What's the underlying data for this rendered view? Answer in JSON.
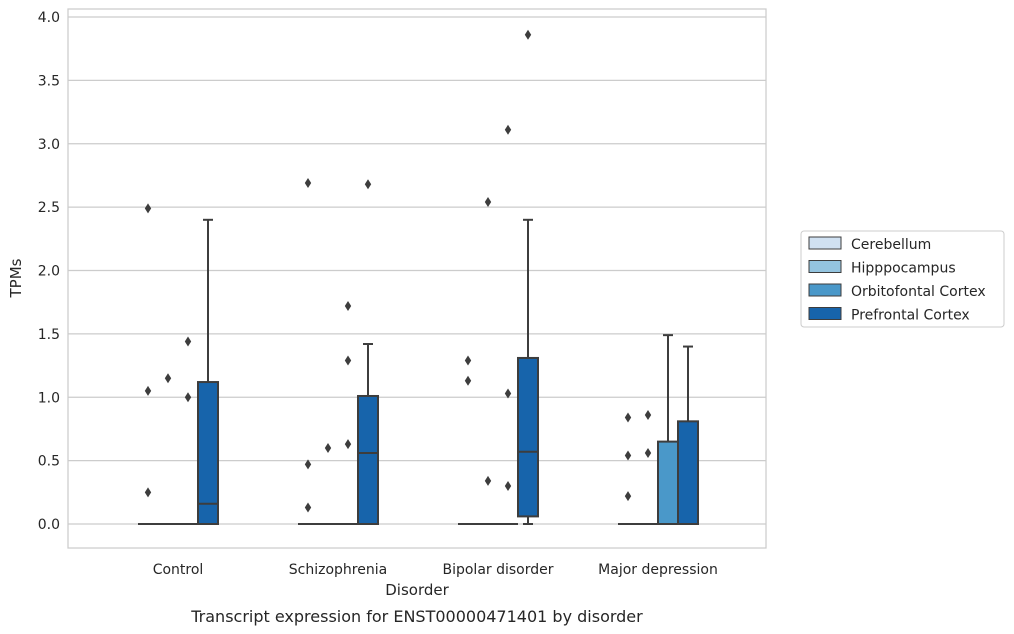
{
  "chart_data": {
    "type": "box",
    "title": "",
    "caption": "Transcript expression for ENST00000471401 by disorder",
    "xlabel": "Disorder",
    "ylabel": "TPMs",
    "ylim": [
      -0.18,
      4.06
    ],
    "yticks": [
      "0.0",
      "0.5",
      "1.0",
      "1.5",
      "2.0",
      "2.5",
      "3.0",
      "3.5",
      "4.0"
    ],
    "grid": true,
    "legend_position": "right",
    "categories": [
      "Control",
      "Schizophrenia",
      "Bipolar disorder",
      "Major depression"
    ],
    "series": [
      {
        "name": "Cerebellum",
        "color": "#d0e1f2",
        "boxes": [
          {
            "q1": 0,
            "median": 0,
            "q3": 0,
            "whisker_low": 0,
            "whisker_high": 0,
            "outliers": [
              2.49,
              1.05,
              0.25
            ]
          },
          {
            "q1": 0,
            "median": 0,
            "q3": 0,
            "whisker_low": 0,
            "whisker_high": 0,
            "outliers": [
              2.69,
              0.47,
              0.13
            ]
          },
          {
            "q1": 0,
            "median": 0,
            "q3": 0,
            "whisker_low": 0,
            "whisker_high": 0,
            "outliers": [
              1.29,
              1.13
            ]
          },
          {
            "q1": 0,
            "median": 0,
            "q3": 0,
            "whisker_low": 0,
            "whisker_high": 0,
            "outliers": [
              0.84,
              0.54,
              0.22
            ]
          }
        ]
      },
      {
        "name": "Hipppocampus",
        "color": "#94c4df",
        "boxes": [
          {
            "q1": 0,
            "median": 0,
            "q3": 0,
            "whisker_low": 0,
            "whisker_high": 0,
            "outliers": [
              1.15
            ]
          },
          {
            "q1": 0,
            "median": 0,
            "q3": 0,
            "whisker_low": 0,
            "whisker_high": 0,
            "outliers": [
              0.6
            ]
          },
          {
            "q1": 0,
            "median": 0,
            "q3": 0,
            "whisker_low": 0,
            "whisker_high": 0,
            "outliers": [
              2.54,
              0.34
            ]
          },
          {
            "q1": 0,
            "median": 0,
            "q3": 0,
            "whisker_low": 0,
            "whisker_high": 0,
            "outliers": [
              0.86,
              0.56
            ]
          }
        ]
      },
      {
        "name": "Orbitofontal Cortex",
        "color": "#4a98c9",
        "boxes": [
          {
            "q1": 0,
            "median": 0,
            "q3": 0,
            "whisker_low": 0,
            "whisker_high": 0,
            "outliers": [
              1.44,
              1.0
            ]
          },
          {
            "q1": 0,
            "median": 0,
            "q3": 0,
            "whisker_low": 0,
            "whisker_high": 0,
            "outliers": [
              1.72,
              1.29,
              0.63
            ]
          },
          {
            "q1": 0,
            "median": 0,
            "q3": 0,
            "whisker_low": 0,
            "whisker_high": 0,
            "outliers": [
              3.11,
              1.03,
              0.3
            ]
          },
          {
            "q1": 0,
            "median": 0,
            "q3": 0.65,
            "whisker_low": 0,
            "whisker_high": 1.49,
            "outliers": []
          }
        ]
      },
      {
        "name": "Prefrontal Cortex",
        "color": "#1764ab",
        "boxes": [
          {
            "q1": 0,
            "median": 0.16,
            "q3": 1.12,
            "whisker_low": 0,
            "whisker_high": 2.4,
            "outliers": []
          },
          {
            "q1": 0,
            "median": 0.56,
            "q3": 1.01,
            "whisker_low": 0,
            "whisker_high": 1.42,
            "outliers": [
              2.68
            ]
          },
          {
            "q1": 0.06,
            "median": 0.57,
            "q3": 1.31,
            "whisker_low": 0,
            "whisker_high": 2.4,
            "outliers": [
              3.86
            ]
          },
          {
            "q1": 0,
            "median": 0,
            "q3": 0.81,
            "whisker_low": 0,
            "whisker_high": 1.4,
            "outliers": []
          }
        ]
      }
    ]
  }
}
